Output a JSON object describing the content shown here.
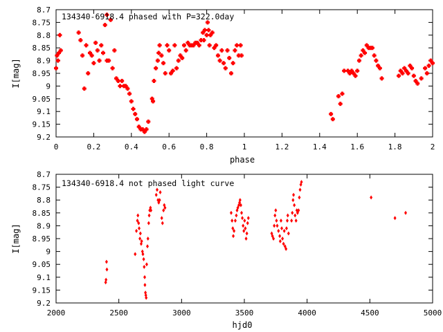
{
  "colors": {
    "point": "#ff0000",
    "axis": "#000000",
    "background": "#ffffff"
  },
  "chart_data": [
    {
      "type": "scatter",
      "title": "134340-6918.4 phased with P=322.0day",
      "xlabel": "phase",
      "ylabel": "I[mag]",
      "xlim": [
        0,
        2
      ],
      "ylim": [
        8.7,
        9.2
      ],
      "y_inverted": true,
      "grid": false,
      "x_ticks": [
        "0",
        "0.2",
        "0.4",
        "0.6",
        "0.8",
        "1",
        "1.2",
        "1.4",
        "1.6",
        "1.8",
        "2"
      ],
      "y_ticks": [
        "8.7",
        "8.75",
        "8.8",
        "8.85",
        "8.9",
        "8.95",
        "9",
        "9.05",
        "9.1",
        "9.15",
        "9.2"
      ],
      "series": [
        {
          "values": [
            [
              0.0,
              8.93
            ],
            [
              0.005,
              8.88
            ],
            [
              0.01,
              8.9
            ],
            [
              0.015,
              8.87
            ],
            [
              0.02,
              8.8
            ],
            [
              0.025,
              8.86
            ],
            [
              0.12,
              8.79
            ],
            [
              0.13,
              8.82
            ],
            [
              0.14,
              8.88
            ],
            [
              0.15,
              9.01
            ],
            [
              0.16,
              8.84
            ],
            [
              0.17,
              8.95
            ],
            [
              0.18,
              8.87
            ],
            [
              0.19,
              8.88
            ],
            [
              0.2,
              8.91
            ],
            [
              0.21,
              8.83
            ],
            [
              0.22,
              8.86
            ],
            [
              0.23,
              8.9
            ],
            [
              0.24,
              8.84
            ],
            [
              0.25,
              8.87
            ],
            [
              0.26,
              8.76
            ],
            [
              0.27,
              8.9
            ],
            [
              0.27,
              8.72
            ],
            [
              0.28,
              8.9
            ],
            [
              0.29,
              8.74
            ],
            [
              0.3,
              8.93
            ],
            [
              0.31,
              8.86
            ],
            [
              0.32,
              8.97
            ],
            [
              0.33,
              8.98
            ],
            [
              0.34,
              9.0
            ],
            [
              0.35,
              8.98
            ],
            [
              0.36,
              9.0
            ],
            [
              0.37,
              9.0
            ],
            [
              0.38,
              9.01
            ],
            [
              0.39,
              9.03
            ],
            [
              0.4,
              9.06
            ],
            [
              0.41,
              9.09
            ],
            [
              0.42,
              9.11
            ],
            [
              0.43,
              9.13
            ],
            [
              0.44,
              9.16
            ],
            [
              0.45,
              9.17
            ],
            [
              0.46,
              9.17
            ],
            [
              0.47,
              9.18
            ],
            [
              0.48,
              9.17
            ],
            [
              0.49,
              9.14
            ],
            [
              0.51,
              9.05
            ],
            [
              0.515,
              9.06
            ],
            [
              0.52,
              8.98
            ],
            [
              0.53,
              8.93
            ],
            [
              0.54,
              8.9
            ],
            [
              0.545,
              8.87
            ],
            [
              0.55,
              8.84
            ],
            [
              0.56,
              8.88
            ],
            [
              0.57,
              8.91
            ],
            [
              0.58,
              8.95
            ],
            [
              0.59,
              8.84
            ],
            [
              0.6,
              8.86
            ],
            [
              0.61,
              8.95
            ],
            [
              0.62,
              8.94
            ],
            [
              0.63,
              8.84
            ],
            [
              0.64,
              8.93
            ],
            [
              0.65,
              8.9
            ],
            [
              0.66,
              8.88
            ],
            [
              0.67,
              8.89
            ],
            [
              0.68,
              8.84
            ],
            [
              0.69,
              8.86
            ],
            [
              0.7,
              8.83
            ],
            [
              0.71,
              8.84
            ],
            [
              0.72,
              8.84
            ],
            [
              0.73,
              8.84
            ],
            [
              0.74,
              8.83
            ],
            [
              0.75,
              8.83
            ],
            [
              0.76,
              8.84
            ],
            [
              0.77,
              8.82
            ],
            [
              0.78,
              8.79
            ],
            [
              0.785,
              8.82
            ],
            [
              0.79,
              8.78
            ],
            [
              0.8,
              8.8
            ],
            [
              0.805,
              8.75
            ],
            [
              0.81,
              8.78
            ],
            [
              0.815,
              8.84
            ],
            [
              0.82,
              8.8
            ],
            [
              0.83,
              8.79
            ],
            [
              0.84,
              8.85
            ],
            [
              0.85,
              8.84
            ],
            [
              0.86,
              8.88
            ],
            [
              0.87,
              8.9
            ],
            [
              0.88,
              8.86
            ],
            [
              0.89,
              8.91
            ],
            [
              0.9,
              8.93
            ],
            [
              0.91,
              8.86
            ],
            [
              0.92,
              8.89
            ],
            [
              0.93,
              8.95
            ],
            [
              0.94,
              8.91
            ],
            [
              0.95,
              8.86
            ],
            [
              0.96,
              8.84
            ],
            [
              0.97,
              8.88
            ],
            [
              0.98,
              8.84
            ],
            [
              0.985,
              8.88
            ],
            [
              1.46,
              9.11
            ],
            [
              1.47,
              9.13
            ],
            [
              1.5,
              9.04
            ],
            [
              1.51,
              9.07
            ],
            [
              1.52,
              9.03
            ],
            [
              1.53,
              8.94
            ],
            [
              1.55,
              8.94
            ],
            [
              1.56,
              8.95
            ],
            [
              1.57,
              8.94
            ],
            [
              1.58,
              8.95
            ],
            [
              1.59,
              8.96
            ],
            [
              1.6,
              8.94
            ],
            [
              1.61,
              8.9
            ],
            [
              1.62,
              8.88
            ],
            [
              1.63,
              8.86
            ],
            [
              1.64,
              8.87
            ],
            [
              1.65,
              8.84
            ],
            [
              1.66,
              8.85
            ],
            [
              1.67,
              8.85
            ],
            [
              1.68,
              8.85
            ],
            [
              1.69,
              8.88
            ],
            [
              1.7,
              8.9
            ],
            [
              1.71,
              8.92
            ],
            [
              1.72,
              8.93
            ],
            [
              1.73,
              8.97
            ],
            [
              1.82,
              8.96
            ],
            [
              1.83,
              8.94
            ],
            [
              1.84,
              8.95
            ],
            [
              1.85,
              8.93
            ],
            [
              1.86,
              8.94
            ],
            [
              1.87,
              8.95
            ],
            [
              1.88,
              8.92
            ],
            [
              1.89,
              8.93
            ],
            [
              1.9,
              8.96
            ],
            [
              1.91,
              8.98
            ],
            [
              1.92,
              8.99
            ],
            [
              1.94,
              8.97
            ],
            [
              1.96,
              8.93
            ],
            [
              1.97,
              8.95
            ],
            [
              1.98,
              8.92
            ],
            [
              1.99,
              8.9
            ],
            [
              2.0,
              8.91
            ]
          ]
        }
      ]
    },
    {
      "type": "scatter",
      "title": "134340-6918.4 not phased light curve",
      "xlabel": "hjd0",
      "ylabel": "I[mag]",
      "xlim": [
        2000,
        5000
      ],
      "ylim": [
        8.7,
        9.2
      ],
      "y_inverted": true,
      "grid": false,
      "x_ticks": [
        "2000",
        "2500",
        "3000",
        "3500",
        "4000",
        "4500",
        "5000"
      ],
      "y_ticks": [
        "8.7",
        "8.75",
        "8.8",
        "8.85",
        "8.9",
        "8.95",
        "9",
        "9.05",
        "9.1",
        "9.15",
        "9.2"
      ],
      "series": [
        {
          "values": [
            [
              2395,
              9.12
            ],
            [
              2398,
              9.11
            ],
            [
              2402,
              9.04
            ],
            [
              2405,
              9.07
            ],
            [
              2630,
              9.01
            ],
            [
              2640,
              8.92
            ],
            [
              2648,
              8.88
            ],
            [
              2652,
              8.86
            ],
            [
              2658,
              8.89
            ],
            [
              2662,
              8.91
            ],
            [
              2668,
              8.95
            ],
            [
              2672,
              8.93
            ],
            [
              2678,
              8.97
            ],
            [
              2682,
              8.96
            ],
            [
              2688,
              9.0
            ],
            [
              2692,
              9.01
            ],
            [
              2698,
              9.03
            ],
            [
              2702,
              9.06
            ],
            [
              2706,
              9.1
            ],
            [
              2708,
              9.13
            ],
            [
              2712,
              9.16
            ],
            [
              2715,
              9.17
            ],
            [
              2718,
              9.18
            ],
            [
              2722,
              9.05
            ],
            [
              2728,
              8.98
            ],
            [
              2732,
              8.95
            ],
            [
              2738,
              8.89
            ],
            [
              2742,
              8.86
            ],
            [
              2746,
              8.84
            ],
            [
              2752,
              8.83
            ],
            [
              2756,
              8.84
            ],
            [
              2798,
              8.78
            ],
            [
              2805,
              8.76
            ],
            [
              2812,
              8.8
            ],
            [
              2818,
              8.81
            ],
            [
              2825,
              8.8
            ],
            [
              2830,
              8.77
            ],
            [
              2842,
              8.87
            ],
            [
              2848,
              8.89
            ],
            [
              2856,
              8.84
            ],
            [
              2862,
              8.82
            ],
            [
              2868,
              8.83
            ],
            [
              3395,
              8.85
            ],
            [
              3402,
              8.88
            ],
            [
              3408,
              8.91
            ],
            [
              3412,
              8.94
            ],
            [
              3418,
              8.92
            ],
            [
              3428,
              8.88
            ],
            [
              3436,
              8.86
            ],
            [
              3442,
              8.84
            ],
            [
              3448,
              8.83
            ],
            [
              3456,
              8.82
            ],
            [
              3462,
              8.81
            ],
            [
              3466,
              8.8
            ],
            [
              3472,
              8.82
            ],
            [
              3478,
              8.85
            ],
            [
              3484,
              8.87
            ],
            [
              3490,
              8.9
            ],
            [
              3496,
              8.92
            ],
            [
              3502,
              8.88
            ],
            [
              3508,
              8.91
            ],
            [
              3514,
              8.95
            ],
            [
              3520,
              8.93
            ],
            [
              3526,
              8.89
            ],
            [
              3532,
              8.87
            ],
            [
              3718,
              8.93
            ],
            [
              3724,
              8.94
            ],
            [
              3732,
              8.95
            ],
            [
              3738,
              8.9
            ],
            [
              3744,
              8.86
            ],
            [
              3750,
              8.84
            ],
            [
              3756,
              8.88
            ],
            [
              3762,
              8.9
            ],
            [
              3772,
              8.92
            ],
            [
              3782,
              8.94
            ],
            [
              3786,
              8.96
            ],
            [
              3792,
              8.88
            ],
            [
              3798,
              8.91
            ],
            [
              3804,
              8.95
            ],
            [
              3812,
              8.97
            ],
            [
              3818,
              8.92
            ],
            [
              3824,
              8.98
            ],
            [
              3832,
              8.99
            ],
            [
              3836,
              8.91
            ],
            [
              3842,
              8.88
            ],
            [
              3846,
              8.86
            ],
            [
              3852,
              8.93
            ],
            [
              3876,
              8.88
            ],
            [
              3882,
              8.85
            ],
            [
              3888,
              8.8
            ],
            [
              3892,
              8.78
            ],
            [
              3898,
              8.82
            ],
            [
              3904,
              8.86
            ],
            [
              3912,
              8.88
            ],
            [
              3918,
              8.84
            ],
            [
              3924,
              8.85
            ],
            [
              3932,
              8.84
            ],
            [
              3938,
              8.79
            ],
            [
              3944,
              8.76
            ],
            [
              3950,
              8.74
            ],
            [
              3955,
              8.73
            ],
            [
              4510,
              8.79
            ],
            [
              4700,
              8.87
            ],
            [
              4785,
              8.85
            ]
          ]
        }
      ]
    }
  ]
}
